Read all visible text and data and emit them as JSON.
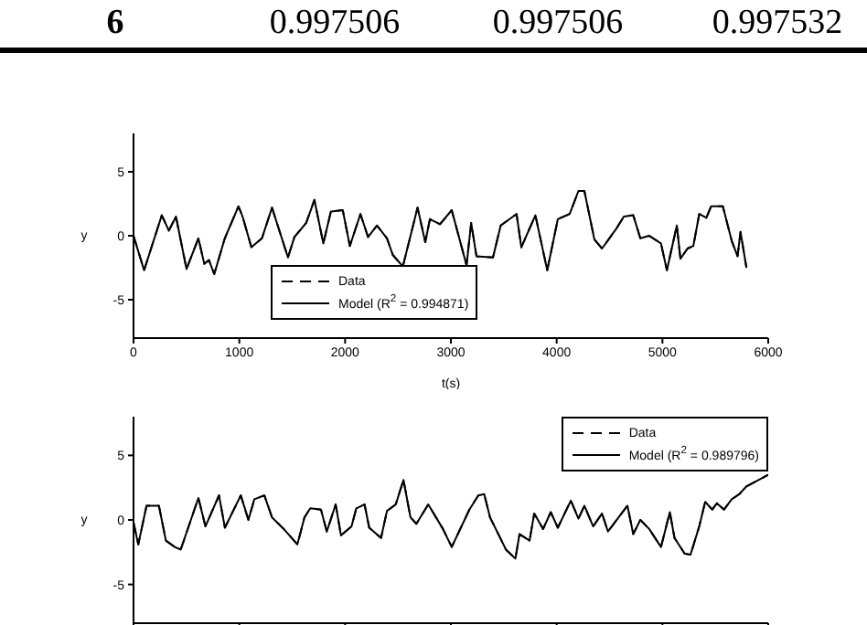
{
  "chart_data": [
    {
      "type": "other",
      "annotations": [
        "6",
        "0.997506",
        "0.997506",
        "0.997532"
      ]
    },
    {
      "type": "line",
      "xlabel": "t(s)",
      "ylabel": "y",
      "xlim": [
        0,
        6000
      ],
      "xticks": [
        0,
        1000,
        2000,
        3000,
        4000,
        5000,
        6000
      ],
      "ylim": [
        -8,
        8
      ],
      "yticks": [
        -5,
        0,
        5
      ],
      "grid": false,
      "legend": "bottom left",
      "marker": "none",
      "x": [
        0,
        100,
        267,
        334,
        401,
        501,
        613,
        669,
        713,
        763,
        863,
        992,
        1031,
        1114,
        1214,
        1309,
        1460,
        1521,
        1632,
        1710,
        1794,
        1866,
        1978,
        2045,
        2145,
        2217,
        2301,
        2396,
        2451,
        2546,
        2685,
        2758,
        2802,
        2897,
        3008,
        3148,
        3192,
        3242,
        3398,
        3471,
        3621,
        3666,
        3799,
        3911,
        4011,
        4123,
        4206,
        4262,
        4357,
        4429,
        4568,
        4635,
        4724,
        4791,
        4875,
        4986,
        5042,
        5136,
        5170,
        5237,
        5292,
        5348,
        5415,
        5460,
        5571,
        5655,
        5710,
        5738,
        5794
      ],
      "series": [
        {
          "name": "Data",
          "color": "#000000",
          "line_style": "dashed",
          "values": [
            0,
            -2.7,
            1.6,
            0.4,
            1.5,
            -2.6,
            -0.2,
            -2.2,
            -1.9,
            -3.0,
            -0.2,
            2.3,
            1.5,
            -0.9,
            -0.2,
            2.2,
            -1.7,
            -0.1,
            1.0,
            2.8,
            -0.6,
            1.9,
            2.0,
            -0.8,
            1.7,
            -0.1,
            0.8,
            -0.2,
            -1.5,
            -2.4,
            2.2,
            -0.5,
            1.3,
            0.9,
            2.0,
            -2.3,
            1.0,
            -1.6,
            -1.7,
            0.8,
            1.7,
            -0.9,
            1.6,
            -2.7,
            1.3,
            1.7,
            3.5,
            3.5,
            -0.3,
            -1.0,
            0.6,
            1.5,
            1.6,
            -0.2,
            0.0,
            -0.6,
            -2.7,
            0.8,
            -1.8,
            -1.0,
            -0.8,
            1.7,
            1.4,
            2.3,
            2.3,
            -0.4,
            -1.6,
            0.3,
            -2.5
          ]
        },
        {
          "name": "Model (R$^{2}$ = 0.994871)",
          "color": "#000000",
          "line_style": "solid",
          "values": [
            0,
            -2.7,
            1.6,
            0.4,
            1.5,
            -2.6,
            -0.2,
            -2.2,
            -1.9,
            -3.0,
            -0.2,
            2.3,
            1.5,
            -0.9,
            -0.2,
            2.2,
            -1.7,
            -0.1,
            1.0,
            2.8,
            -0.6,
            1.9,
            2.0,
            -0.8,
            1.7,
            -0.1,
            0.8,
            -0.2,
            -1.5,
            -2.4,
            2.2,
            -0.5,
            1.3,
            0.9,
            2.0,
            -2.3,
            1.0,
            -1.6,
            -1.7,
            0.8,
            1.7,
            -0.9,
            1.6,
            -2.7,
            1.3,
            1.7,
            3.5,
            3.5,
            -0.3,
            -1.0,
            0.6,
            1.5,
            1.6,
            -0.2,
            0.0,
            -0.6,
            -2.7,
            0.8,
            -1.8,
            -1.0,
            -0.8,
            1.7,
            1.4,
            2.3,
            2.3,
            -0.4,
            -1.6,
            0.3,
            -2.5
          ]
        }
      ]
    },
    {
      "type": "line",
      "ylabel": "y",
      "xlim": [
        0,
        6000
      ],
      "xticks": [
        {
          "value": 0,
          "label": null
        },
        {
          "value": 1000,
          "label": null
        },
        {
          "value": 2000,
          "label": null
        },
        {
          "value": 3000,
          "label": null
        },
        {
          "value": 4000,
          "label": null
        },
        {
          "value": 5000,
          "label": null
        },
        {
          "value": 6000,
          "label": null
        }
      ],
      "ylim": [
        -8,
        8
      ],
      "yticks": [
        -5,
        0,
        5
      ],
      "tick_labels": "y",
      "grid": false,
      "legend": "top right",
      "marker": "none",
      "x": [
        0,
        45,
        123,
        240,
        306,
        390,
        446,
        613,
        680,
        808,
        864,
        1014,
        1086,
        1142,
        1237,
        1309,
        1420,
        1549,
        1616,
        1671,
        1772,
        1827,
        1911,
        1961,
        2061,
        2106,
        2184,
        2228,
        2340,
        2396,
        2479,
        2552,
        2618,
        2674,
        2786,
        2925,
        3008,
        3175,
        3259,
        3315,
        3370,
        3521,
        3610,
        3649,
        3744,
        3788,
        3872,
        3944,
        4011,
        4134,
        4206,
        4262,
        4345,
        4429,
        4485,
        4669,
        4724,
        4791,
        4875,
        4986,
        5070,
        5114,
        5209,
        5265,
        5348,
        5404,
        5471,
        5515,
        5582,
        5655,
        5727,
        5794,
        6000
      ],
      "series": [
        {
          "name": "Data",
          "color": "#000000",
          "line_style": "dashed",
          "values": [
            -0.2,
            -1.9,
            1.1,
            1.1,
            -1.6,
            -2.1,
            -2.3,
            1.7,
            -0.5,
            1.9,
            -0.6,
            1.9,
            0,
            1.6,
            1.9,
            0.2,
            -0.7,
            -1.9,
            0.2,
            0.9,
            0.8,
            -0.9,
            1.2,
            -1.2,
            -0.5,
            0.9,
            1.2,
            -0.6,
            -1.4,
            0.7,
            1.2,
            3.1,
            0.2,
            -0.3,
            1.2,
            -0.7,
            -2.1,
            0.8,
            1.9,
            2.0,
            0.2,
            -2.3,
            -3.0,
            -1.1,
            -1.6,
            0.5,
            -0.7,
            0.6,
            -0.6,
            1.5,
            0.1,
            1.1,
            -0.5,
            0.5,
            -0.9,
            1.1,
            -1.1,
            0,
            -0.7,
            -2.1,
            0.6,
            -1.4,
            -2.6,
            -2.7,
            -0.5,
            1.4,
            0.8,
            1.3,
            0.8,
            1.6,
            2.0,
            2.6,
            3.5
          ]
        },
        {
          "name": "Model (R$^{2}$ = 0.989796)",
          "color": "#000000",
          "line_style": "solid",
          "values": [
            -0.2,
            -1.9,
            1.1,
            1.1,
            -1.6,
            -2.1,
            -2.3,
            1.7,
            -0.5,
            1.9,
            -0.6,
            1.9,
            0,
            1.6,
            1.9,
            0.2,
            -0.7,
            -1.9,
            0.2,
            0.9,
            0.8,
            -0.9,
            1.2,
            -1.2,
            -0.5,
            0.9,
            1.2,
            -0.6,
            -1.4,
            0.7,
            1.2,
            3.1,
            0.2,
            -0.3,
            1.2,
            -0.7,
            -2.1,
            0.8,
            1.9,
            2.0,
            0.2,
            -2.3,
            -3.0,
            -1.1,
            -1.6,
            0.5,
            -0.7,
            0.6,
            -0.6,
            1.5,
            0.1,
            1.1,
            -0.5,
            0.5,
            -0.9,
            1.1,
            -1.1,
            0,
            -0.7,
            -2.1,
            0.6,
            -1.4,
            -2.6,
            -2.7,
            -0.5,
            1.4,
            0.8,
            1.3,
            0.8,
            1.6,
            2.0,
            2.6,
            3.5
          ]
        }
      ]
    }
  ]
}
